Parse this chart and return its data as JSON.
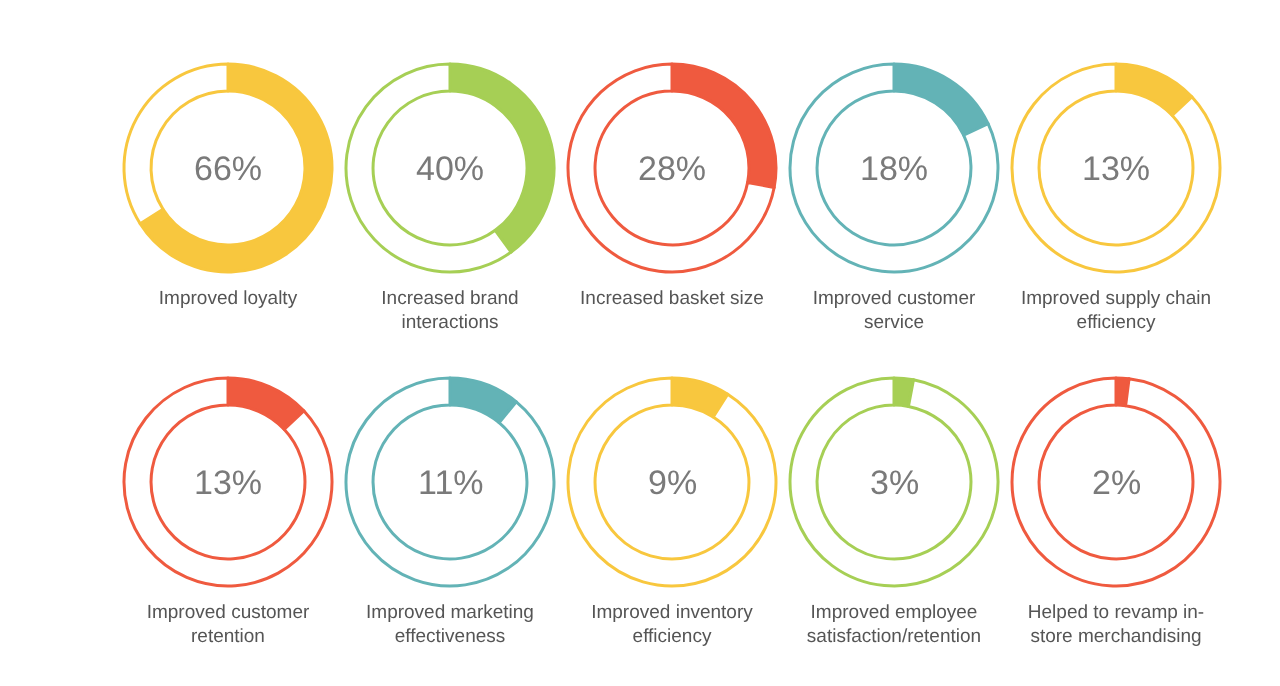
{
  "chart_data": [
    {
      "type": "donut",
      "title": "Improved loyalty",
      "categories": [
        null,
        null
      ],
      "values": [
        66,
        34
      ],
      "colors": [
        "#f8c73e",
        "#ffffff"
      ],
      "annotations": [
        "66%"
      ]
    },
    {
      "type": "donut",
      "title": "Increased brand interactions",
      "categories": [
        null,
        null
      ],
      "values": [
        40,
        60
      ],
      "colors": [
        "#a6cf55",
        "#ffffff"
      ],
      "annotations": [
        "40%"
      ]
    },
    {
      "type": "donut",
      "title": "Increased basket size",
      "categories": [
        null,
        null
      ],
      "values": [
        28,
        72
      ],
      "colors": [
        "#ef5a3f",
        "#ffffff"
      ],
      "annotations": [
        "28%"
      ]
    },
    {
      "type": "donut",
      "title": "Improved customer service",
      "categories": [
        null,
        null
      ],
      "values": [
        18,
        82
      ],
      "colors": [
        "#63b3b6",
        "#ffffff"
      ],
      "annotations": [
        "18%"
      ]
    },
    {
      "type": "donut",
      "title": "Improved supply chain efficiency",
      "categories": [
        null,
        null
      ],
      "values": [
        13,
        87
      ],
      "colors": [
        "#f8c73e",
        "#ffffff"
      ],
      "annotations": [
        "13%"
      ]
    },
    {
      "type": "donut",
      "title": "Improved customer retention",
      "categories": [
        null,
        null
      ],
      "values": [
        13,
        87
      ],
      "colors": [
        "#ef5a3f",
        "#ffffff"
      ],
      "annotations": [
        "13%"
      ]
    },
    {
      "type": "donut",
      "title": "Improved marketing effectiveness",
      "categories": [
        null,
        null
      ],
      "values": [
        11,
        89
      ],
      "colors": [
        "#63b3b6",
        "#ffffff"
      ],
      "annotations": [
        "11%"
      ]
    },
    {
      "type": "donut",
      "title": "Improved inventory efficiency",
      "categories": [
        null,
        null
      ],
      "values": [
        9,
        91
      ],
      "colors": [
        "#f8c73e",
        "#ffffff"
      ],
      "annotations": [
        "9%"
      ]
    },
    {
      "type": "donut",
      "title": "Improved employee satisfaction/retention",
      "categories": [
        null,
        null
      ],
      "values": [
        3,
        97
      ],
      "colors": [
        "#a6cf55",
        "#ffffff"
      ],
      "annotations": [
        "3%"
      ]
    },
    {
      "type": "donut",
      "title": "Helped to revamp in-store merchandising",
      "categories": [
        null,
        null
      ],
      "values": [
        2,
        98
      ],
      "colors": [
        "#ef5a3f",
        "#ffffff"
      ],
      "annotations": [
        "2%"
      ]
    }
  ]
}
